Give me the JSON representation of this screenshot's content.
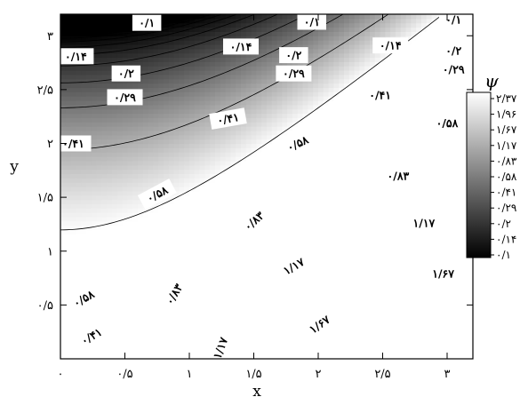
{
  "chart_data": {
    "type": "contour",
    "xlabel": "x",
    "ylabel": "y",
    "xlim": [
      0,
      3.2
    ],
    "ylim": [
      0,
      3.2
    ],
    "x_ticks": [
      {
        "value": 0,
        "label": "۰"
      },
      {
        "value": 0.5,
        "label": "۰/۵"
      },
      {
        "value": 1,
        "label": "۱"
      },
      {
        "value": 1.5,
        "label": "۱/۵"
      },
      {
        "value": 2,
        "label": "۲"
      },
      {
        "value": 2.5,
        "label": "۲/۵"
      },
      {
        "value": 3,
        "label": "۳"
      }
    ],
    "y_ticks": [
      {
        "value": 0.5,
        "label": "۰/۵"
      },
      {
        "value": 1,
        "label": "۱"
      },
      {
        "value": 1.5,
        "label": "۱/۵"
      },
      {
        "value": 2,
        "label": "۲"
      },
      {
        "value": 2.5,
        "label": "۲/۵"
      },
      {
        "value": 3,
        "label": "۳"
      }
    ],
    "field": "psi = 0.1 + 0.3*(x^2 - y^2 + 9), clipped to [0.1, 2.4]",
    "colorbar": {
      "title": "ψ",
      "min": 0.1,
      "max": 2.4,
      "colormap": [
        "#000000",
        "#ffffff"
      ],
      "ticks": [
        {
          "value": 2.37,
          "label": "۲/۳۷"
        },
        {
          "value": 1.96,
          "label": "۱/۹۶"
        },
        {
          "value": 1.67,
          "label": "۱/۶۷"
        },
        {
          "value": 1.17,
          "label": "۱/۱۷"
        },
        {
          "value": 0.83,
          "label": "۰/۸۳"
        },
        {
          "value": 0.58,
          "label": "۰/۵۸"
        },
        {
          "value": 0.41,
          "label": "۰/۴۱"
        },
        {
          "value": 0.29,
          "label": "۰/۲۹"
        },
        {
          "value": 0.2,
          "label": "۰/۲"
        },
        {
          "value": 0.14,
          "label": "۰/۱۴"
        },
        {
          "value": 0.1,
          "label": "۰/۱"
        }
      ]
    },
    "contour_levels": [
      0.1,
      0.14,
      0.2,
      0.29,
      0.41,
      0.58,
      0.83,
      1.17,
      1.67,
      2.37
    ],
    "contour_labels": [
      {
        "text": "۰/۱",
        "x": 0.67,
        "y": 3.12,
        "angle": 0
      },
      {
        "text": "۰/۱",
        "x": 1.95,
        "y": 3.13,
        "angle": 0
      },
      {
        "text": "۰/۱",
        "x": 3.05,
        "y": 3.15,
        "angle": 0
      },
      {
        "text": "۰/۱۴",
        "x": 0.12,
        "y": 2.81,
        "angle": 0
      },
      {
        "text": "۰/۱۴",
        "x": 1.4,
        "y": 2.9,
        "angle": 0
      },
      {
        "text": "۰/۱۴",
        "x": 2.56,
        "y": 2.91,
        "angle": 0
      },
      {
        "text": "۰/۲",
        "x": 0.51,
        "y": 2.65,
        "angle": 0
      },
      {
        "text": "۰/۲",
        "x": 1.81,
        "y": 2.82,
        "angle": 0
      },
      {
        "text": "۰/۲",
        "x": 3.05,
        "y": 2.86,
        "angle": 0
      },
      {
        "text": "۰/۲۹",
        "x": 0.5,
        "y": 2.43,
        "angle": 0
      },
      {
        "text": "۰/۲۹",
        "x": 1.81,
        "y": 2.65,
        "angle": 0
      },
      {
        "text": "۰/۲۹",
        "x": 3.05,
        "y": 2.69,
        "angle": 0
      },
      {
        "text": "۰/۴۱",
        "x": 1.3,
        "y": 2.23,
        "angle": -10
      },
      {
        "text": "۰/۴۱",
        "x": 2.48,
        "y": 2.45,
        "angle": 0
      },
      {
        "text": "۰/۴۱",
        "x": 0.1,
        "y": 2.0,
        "angle": 0
      },
      {
        "text": "۰/۵۸",
        "x": 1.84,
        "y": 2.0,
        "angle": -25
      },
      {
        "text": "۰/۵۸",
        "x": 3.0,
        "y": 2.19,
        "angle": 0
      },
      {
        "text": "۰/۵۸",
        "x": 0.75,
        "y": 1.53,
        "angle": -28
      },
      {
        "text": "۰/۸۳",
        "x": 2.62,
        "y": 1.7,
        "angle": 0
      },
      {
        "text": "۰/۸۳",
        "x": 1.5,
        "y": 1.28,
        "angle": -42
      },
      {
        "text": "۱/۱۷",
        "x": 2.82,
        "y": 1.26,
        "angle": 0
      },
      {
        "text": "۱/۱۷",
        "x": 1.81,
        "y": 0.86,
        "angle": -30
      },
      {
        "text": "۱/۶۷",
        "x": 2.97,
        "y": 0.79,
        "angle": 0
      },
      {
        "text": "۱/۶۷",
        "x": 2.01,
        "y": 0.32,
        "angle": -35
      },
      {
        "text": "۰/۵۸",
        "x": 0.18,
        "y": 0.56,
        "angle": -30
      },
      {
        "text": "۰/۸۳",
        "x": 0.88,
        "y": 0.6,
        "angle": -60
      },
      {
        "text": "۰/۴۱",
        "x": 0.24,
        "y": 0.21,
        "angle": -30
      },
      {
        "text": "۱/۱۷",
        "x": 1.24,
        "y": 0.1,
        "angle": -70
      }
    ]
  }
}
